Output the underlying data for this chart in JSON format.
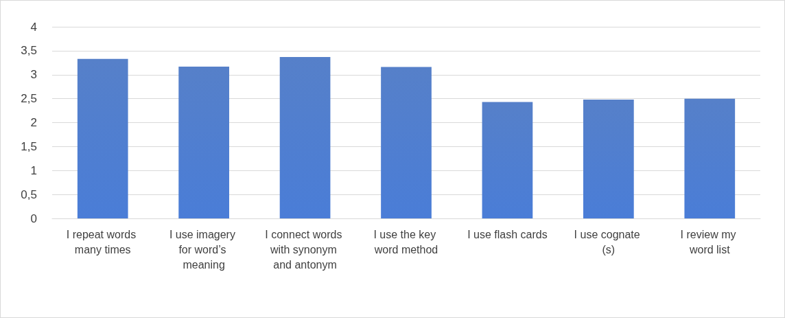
{
  "chart_data": {
    "type": "bar",
    "categories": [
      "I repeat words many times",
      "I use imagery for word’s meaning",
      "I connect words with synonym and antonym",
      "I use the key word method",
      "I use flash cards",
      "I use cognate (s)",
      "I review my word list"
    ],
    "values": [
      3.33,
      3.17,
      3.37,
      3.16,
      2.43,
      2.48,
      2.5
    ],
    "color": "#4472c4",
    "ylim": [
      0,
      4
    ],
    "yticks": [
      0,
      {
        "value": 0.5,
        "label": "0,5"
      },
      1,
      {
        "value": 1.5,
        "label": "1,5"
      },
      2,
      {
        "value": 2.5,
        "label": "2,5"
      },
      3,
      {
        "value": 3.5,
        "label": "3,5"
      },
      4
    ],
    "grid": "y"
  }
}
